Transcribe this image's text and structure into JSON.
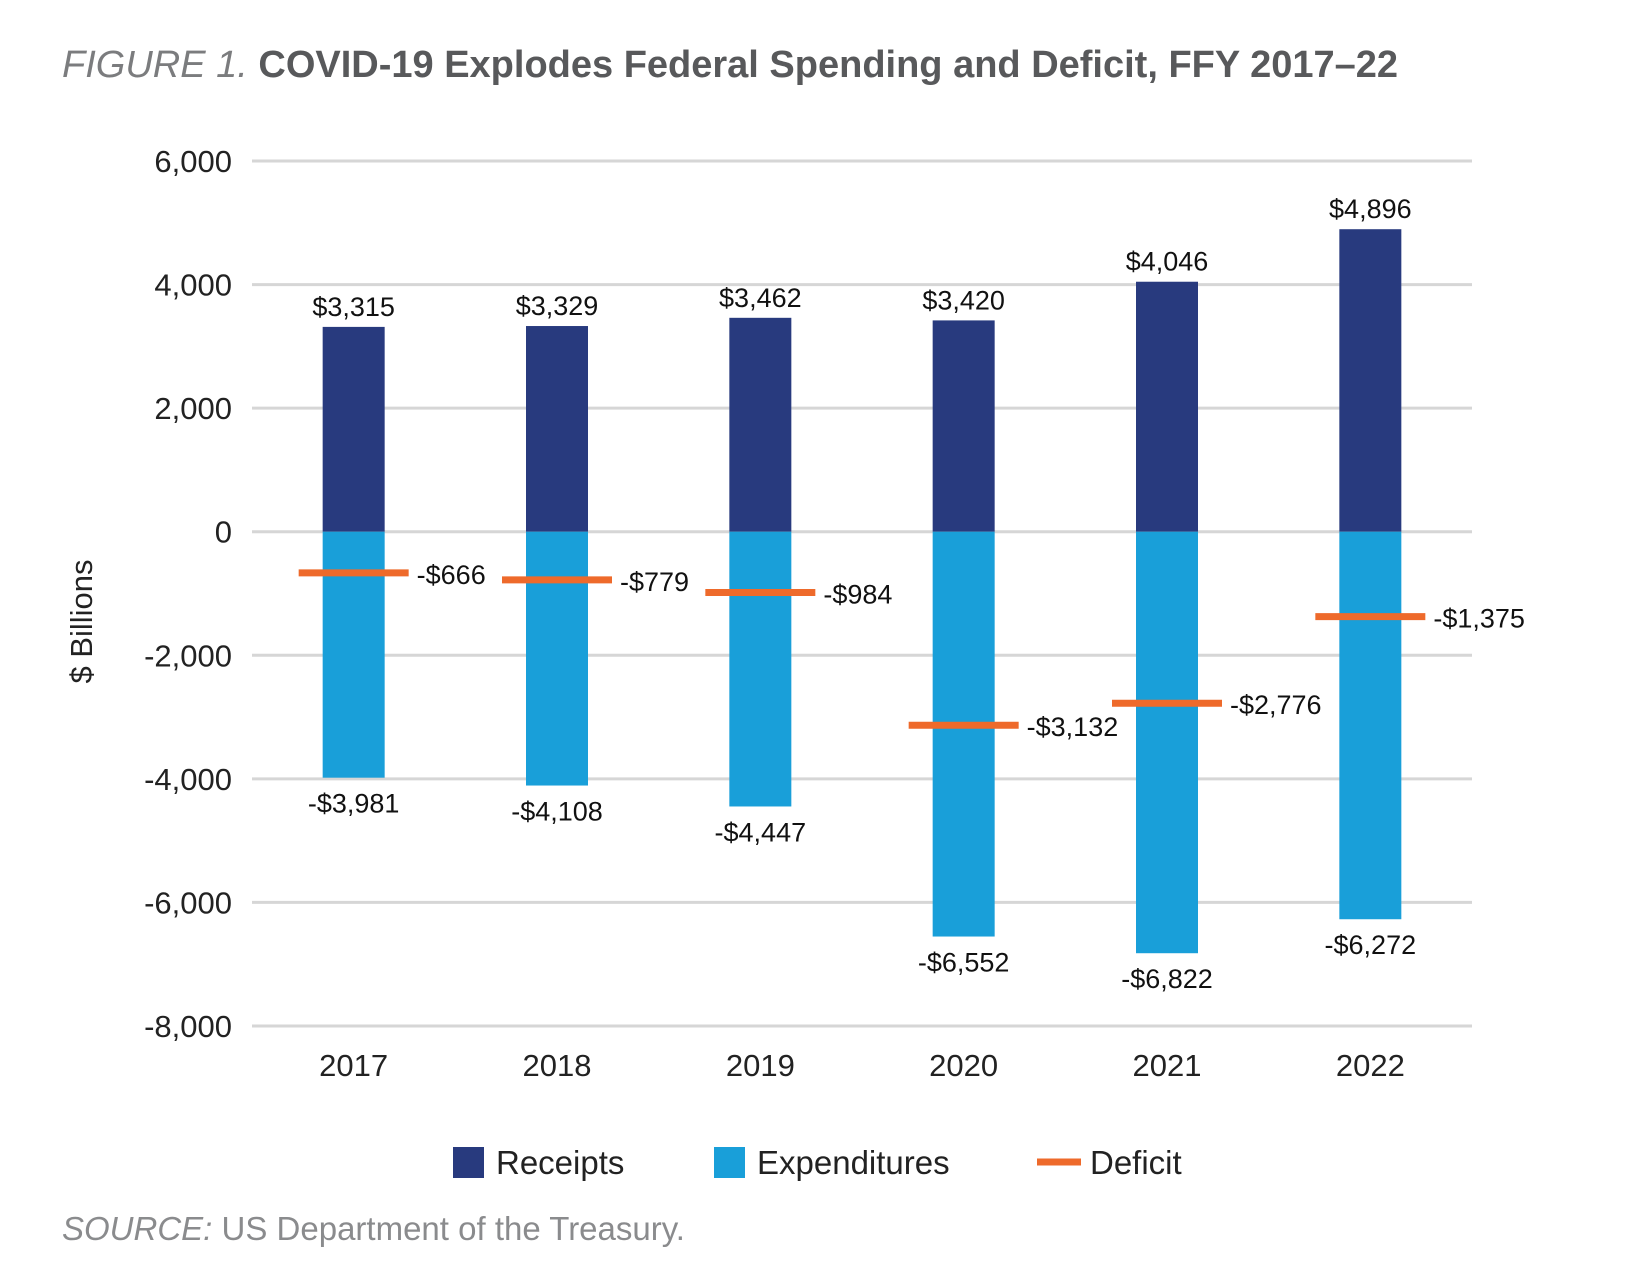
{
  "header": {
    "figure_label": "FIGURE 1.",
    "title": "COVID-19 Explodes Federal Spending and Deficit, FFY 2017–22"
  },
  "footer": {
    "source_label": "SOURCE:",
    "source_text": "US Department of the Treasury."
  },
  "chart_data": {
    "type": "bar",
    "title": "COVID-19 Explodes Federal Spending and Deficit, FFY 2017–22",
    "xlabel": "",
    "ylabel": "$ Billions",
    "ylim": [
      -8000,
      6000
    ],
    "yticks": [
      6000,
      4000,
      2000,
      0,
      -2000,
      -4000,
      -6000,
      -8000
    ],
    "ytick_labels": [
      "6,000",
      "4,000",
      "2,000",
      "0",
      "-2,000",
      "-4,000",
      "-6,000",
      "-8,000"
    ],
    "categories": [
      "2017",
      "2018",
      "2019",
      "2020",
      "2021",
      "2022"
    ],
    "grid": true,
    "legend_position": "bottom",
    "series": [
      {
        "name": "Receipts",
        "kind": "bar",
        "color": "#283a7e",
        "values": [
          3315,
          3329,
          3462,
          3420,
          4046,
          4896
        ],
        "labels": [
          "$3,315",
          "$3,329",
          "$3,462",
          "$3,420",
          "$4,046",
          "$4,896"
        ]
      },
      {
        "name": "Expenditures",
        "kind": "bar",
        "color": "#199fd9",
        "values": [
          -3981,
          -4108,
          -4447,
          -6552,
          -6822,
          -6272
        ],
        "labels": [
          "-$3,981",
          "-$4,108",
          "-$4,447",
          "-$6,552",
          "-$6,822",
          "-$6,272"
        ]
      },
      {
        "name": "Deficit",
        "kind": "marker",
        "color": "#ee6a2b",
        "values": [
          -666,
          -779,
          -984,
          -3132,
          -2776,
          -1375
        ],
        "labels": [
          "-$666",
          "-$779",
          "-$984",
          "-$3,132",
          "-$2,776",
          "-$1,375"
        ]
      }
    ]
  }
}
